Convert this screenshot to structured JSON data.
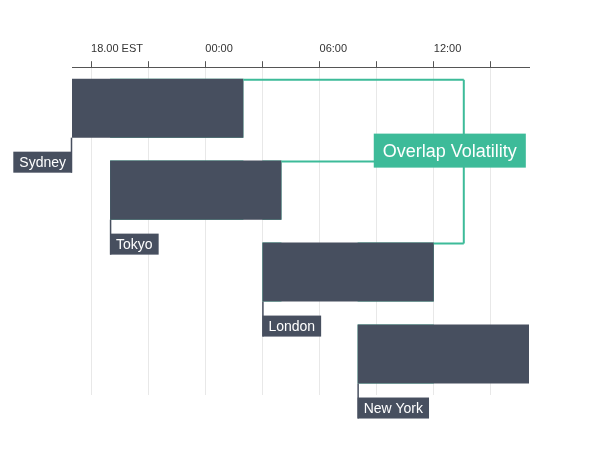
{
  "chart_data": {
    "type": "bar",
    "orientation": "horizontal",
    "categories": [
      "Sydney",
      "Tokyo",
      "London",
      "New York"
    ],
    "values": [
      [
        17,
        26
      ],
      [
        19,
        28
      ],
      [
        27,
        36
      ],
      [
        32,
        41
      ]
    ],
    "color": "#474f5f",
    "overlap": {
      "label": "Overlap Volatility",
      "color": "#3dbb99"
    },
    "xlim": [
      17,
      41
    ],
    "xticks": [
      {
        "value": 18,
        "label": "18.00 EST"
      },
      {
        "value": 21,
        "label": null
      },
      {
        "value": 24,
        "label": "00:00"
      },
      {
        "value": 27,
        "label": null
      },
      {
        "value": 30,
        "label": "06:00"
      },
      {
        "value": 33,
        "label": null
      },
      {
        "value": 36,
        "label": "12:00"
      },
      {
        "value": 39,
        "label": null
      }
    ],
    "grid": true,
    "tick_labels": "x"
  }
}
